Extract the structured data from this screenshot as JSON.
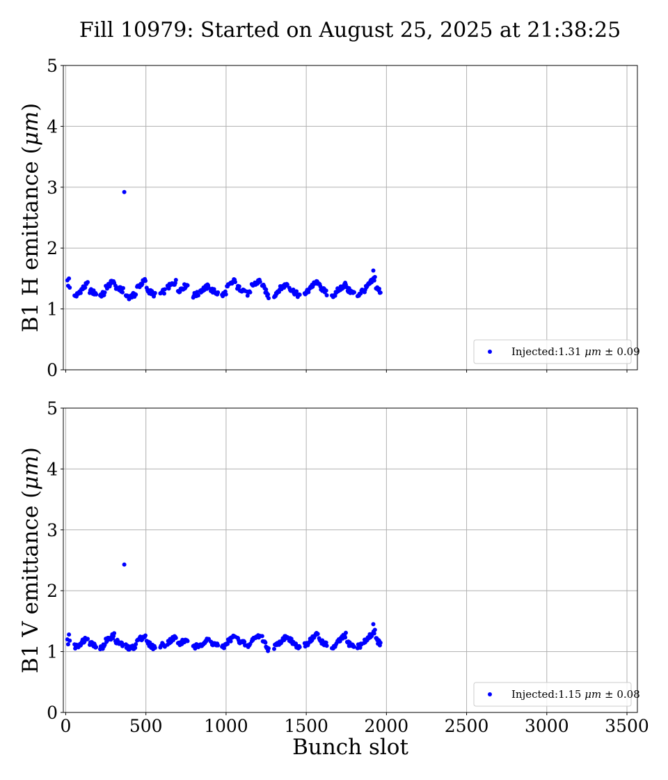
{
  "figure": {
    "title": "Fill 10979: Started on August 25, 2025 at 21:38:25"
  },
  "chart_data": [
    {
      "type": "scatter",
      "title": "",
      "xlabel": "",
      "ylabel": "B1 H emittance (μm)",
      "xlim": [
        -15,
        3565
      ],
      "ylim": [
        0,
        5
      ],
      "xticks": [
        0,
        500,
        1000,
        1500,
        2000,
        2500,
        3000,
        3500
      ],
      "yticks": [
        0,
        1,
        2,
        3,
        4,
        5
      ],
      "show_xtick_labels": false,
      "grid": true,
      "legend_position": "lower-right",
      "color": "#0000ff",
      "series": [
        {
          "name": "Injected:1.31 μm ± 0.09",
          "mean": 1.31,
          "std": 0.09,
          "points": [
            {
              "x": 10,
              "y": 1.47
            },
            {
              "x": 15,
              "y": 1.38
            },
            {
              "x": 20,
              "y": 1.5
            },
            {
              "x": 25,
              "y": 1.35
            },
            {
              "x": 365,
              "y": 2.92
            },
            {
              "x": 1918,
              "y": 1.63
            }
          ],
          "bunch_trains": [
            {
              "x_start": 55,
              "x_end": 80,
              "y_start": 1.2,
              "y_end": 1.25
            },
            {
              "x_start": 85,
              "x_end": 140,
              "y_start": 1.28,
              "y_end": 1.42
            },
            {
              "x_start": 150,
              "x_end": 190,
              "y_start": 1.3,
              "y_end": 1.25
            },
            {
              "x_start": 215,
              "x_end": 245,
              "y_start": 1.23,
              "y_end": 1.25
            },
            {
              "x_start": 250,
              "x_end": 305,
              "y_start": 1.35,
              "y_end": 1.47
            },
            {
              "x_start": 310,
              "x_end": 360,
              "y_start": 1.35,
              "y_end": 1.3
            },
            {
              "x_start": 375,
              "x_end": 395,
              "y_start": 1.22,
              "y_end": 1.2
            },
            {
              "x_start": 405,
              "x_end": 440,
              "y_start": 1.2,
              "y_end": 1.25
            },
            {
              "x_start": 445,
              "x_end": 500,
              "y_start": 1.35,
              "y_end": 1.48
            },
            {
              "x_start": 505,
              "x_end": 560,
              "y_start": 1.32,
              "y_end": 1.22
            },
            {
              "x_start": 590,
              "x_end": 620,
              "y_start": 1.25,
              "y_end": 1.3
            },
            {
              "x_start": 635,
              "x_end": 690,
              "y_start": 1.35,
              "y_end": 1.45
            },
            {
              "x_start": 700,
              "x_end": 760,
              "y_start": 1.3,
              "y_end": 1.4
            },
            {
              "x_start": 795,
              "x_end": 830,
              "y_start": 1.22,
              "y_end": 1.25
            },
            {
              "x_start": 840,
              "x_end": 895,
              "y_start": 1.3,
              "y_end": 1.38
            },
            {
              "x_start": 905,
              "x_end": 950,
              "y_start": 1.32,
              "y_end": 1.25
            },
            {
              "x_start": 975,
              "x_end": 1000,
              "y_start": 1.22,
              "y_end": 1.28
            },
            {
              "x_start": 1005,
              "x_end": 1060,
              "y_start": 1.35,
              "y_end": 1.48
            },
            {
              "x_start": 1070,
              "x_end": 1120,
              "y_start": 1.35,
              "y_end": 1.3
            },
            {
              "x_start": 1130,
              "x_end": 1150,
              "y_start": 1.25,
              "y_end": 1.25
            },
            {
              "x_start": 1160,
              "x_end": 1215,
              "y_start": 1.38,
              "y_end": 1.47
            },
            {
              "x_start": 1225,
              "x_end": 1265,
              "y_start": 1.4,
              "y_end": 1.2
            },
            {
              "x_start": 1300,
              "x_end": 1325,
              "y_start": 1.22,
              "y_end": 1.3
            },
            {
              "x_start": 1330,
              "x_end": 1385,
              "y_start": 1.32,
              "y_end": 1.42
            },
            {
              "x_start": 1395,
              "x_end": 1460,
              "y_start": 1.35,
              "y_end": 1.2
            },
            {
              "x_start": 1490,
              "x_end": 1515,
              "y_start": 1.25,
              "y_end": 1.3
            },
            {
              "x_start": 1520,
              "x_end": 1575,
              "y_start": 1.35,
              "y_end": 1.45
            },
            {
              "x_start": 1580,
              "x_end": 1630,
              "y_start": 1.38,
              "y_end": 1.25
            },
            {
              "x_start": 1660,
              "x_end": 1690,
              "y_start": 1.22,
              "y_end": 1.25
            },
            {
              "x_start": 1695,
              "x_end": 1750,
              "y_start": 1.3,
              "y_end": 1.42
            },
            {
              "x_start": 1755,
              "x_end": 1800,
              "y_start": 1.32,
              "y_end": 1.25
            },
            {
              "x_start": 1820,
              "x_end": 1850,
              "y_start": 1.22,
              "y_end": 1.3
            },
            {
              "x_start": 1860,
              "x_end": 1930,
              "y_start": 1.3,
              "y_end": 1.52
            },
            {
              "x_start": 1935,
              "x_end": 1965,
              "y_start": 1.35,
              "y_end": 1.28
            }
          ]
        }
      ]
    },
    {
      "type": "scatter",
      "title": "",
      "xlabel": "Bunch slot",
      "ylabel": "B1 V emittance (μm)",
      "xlim": [
        -15,
        3565
      ],
      "ylim": [
        0,
        5
      ],
      "xticks": [
        0,
        500,
        1000,
        1500,
        2000,
        2500,
        3000,
        3500
      ],
      "yticks": [
        0,
        1,
        2,
        3,
        4,
        5
      ],
      "show_xtick_labels": true,
      "grid": true,
      "legend_position": "lower-right",
      "color": "#0000ff",
      "series": [
        {
          "name": "Injected:1.15 μm ± 0.08",
          "mean": 1.15,
          "std": 0.08,
          "points": [
            {
              "x": 10,
              "y": 1.2
            },
            {
              "x": 15,
              "y": 1.12
            },
            {
              "x": 20,
              "y": 1.28
            },
            {
              "x": 25,
              "y": 1.18
            },
            {
              "x": 365,
              "y": 2.43
            },
            {
              "x": 1918,
              "y": 1.45
            }
          ],
          "bunch_trains": [
            {
              "x_start": 55,
              "x_end": 80,
              "y_start": 1.08,
              "y_end": 1.1
            },
            {
              "x_start": 85,
              "x_end": 140,
              "y_start": 1.12,
              "y_end": 1.25
            },
            {
              "x_start": 150,
              "x_end": 190,
              "y_start": 1.15,
              "y_end": 1.1
            },
            {
              "x_start": 215,
              "x_end": 245,
              "y_start": 1.05,
              "y_end": 1.1
            },
            {
              "x_start": 250,
              "x_end": 305,
              "y_start": 1.18,
              "y_end": 1.27
            },
            {
              "x_start": 310,
              "x_end": 360,
              "y_start": 1.18,
              "y_end": 1.1
            },
            {
              "x_start": 375,
              "x_end": 395,
              "y_start": 1.08,
              "y_end": 1.05
            },
            {
              "x_start": 405,
              "x_end": 440,
              "y_start": 1.05,
              "y_end": 1.1
            },
            {
              "x_start": 445,
              "x_end": 500,
              "y_start": 1.18,
              "y_end": 1.27
            },
            {
              "x_start": 505,
              "x_end": 560,
              "y_start": 1.15,
              "y_end": 1.05
            },
            {
              "x_start": 590,
              "x_end": 620,
              "y_start": 1.1,
              "y_end": 1.12
            },
            {
              "x_start": 635,
              "x_end": 690,
              "y_start": 1.15,
              "y_end": 1.25
            },
            {
              "x_start": 700,
              "x_end": 760,
              "y_start": 1.12,
              "y_end": 1.2
            },
            {
              "x_start": 795,
              "x_end": 830,
              "y_start": 1.06,
              "y_end": 1.1
            },
            {
              "x_start": 840,
              "x_end": 895,
              "y_start": 1.12,
              "y_end": 1.2
            },
            {
              "x_start": 905,
              "x_end": 950,
              "y_start": 1.15,
              "y_end": 1.1
            },
            {
              "x_start": 975,
              "x_end": 1000,
              "y_start": 1.05,
              "y_end": 1.12
            },
            {
              "x_start": 1005,
              "x_end": 1060,
              "y_start": 1.15,
              "y_end": 1.27
            },
            {
              "x_start": 1070,
              "x_end": 1120,
              "y_start": 1.2,
              "y_end": 1.12
            },
            {
              "x_start": 1130,
              "x_end": 1150,
              "y_start": 1.08,
              "y_end": 1.1
            },
            {
              "x_start": 1160,
              "x_end": 1215,
              "y_start": 1.2,
              "y_end": 1.27
            },
            {
              "x_start": 1225,
              "x_end": 1265,
              "y_start": 1.22,
              "y_end": 1.03
            },
            {
              "x_start": 1300,
              "x_end": 1325,
              "y_start": 1.08,
              "y_end": 1.12
            },
            {
              "x_start": 1330,
              "x_end": 1385,
              "y_start": 1.15,
              "y_end": 1.27
            },
            {
              "x_start": 1395,
              "x_end": 1460,
              "y_start": 1.2,
              "y_end": 1.04
            },
            {
              "x_start": 1490,
              "x_end": 1515,
              "y_start": 1.1,
              "y_end": 1.15
            },
            {
              "x_start": 1520,
              "x_end": 1575,
              "y_start": 1.18,
              "y_end": 1.3
            },
            {
              "x_start": 1580,
              "x_end": 1630,
              "y_start": 1.2,
              "y_end": 1.1
            },
            {
              "x_start": 1660,
              "x_end": 1690,
              "y_start": 1.06,
              "y_end": 1.1
            },
            {
              "x_start": 1695,
              "x_end": 1750,
              "y_start": 1.15,
              "y_end": 1.28
            },
            {
              "x_start": 1755,
              "x_end": 1800,
              "y_start": 1.15,
              "y_end": 1.08
            },
            {
              "x_start": 1820,
              "x_end": 1850,
              "y_start": 1.08,
              "y_end": 1.12
            },
            {
              "x_start": 1860,
              "x_end": 1930,
              "y_start": 1.15,
              "y_end": 1.35
            },
            {
              "x_start": 1935,
              "x_end": 1965,
              "y_start": 1.2,
              "y_end": 1.12
            }
          ]
        }
      ]
    }
  ]
}
